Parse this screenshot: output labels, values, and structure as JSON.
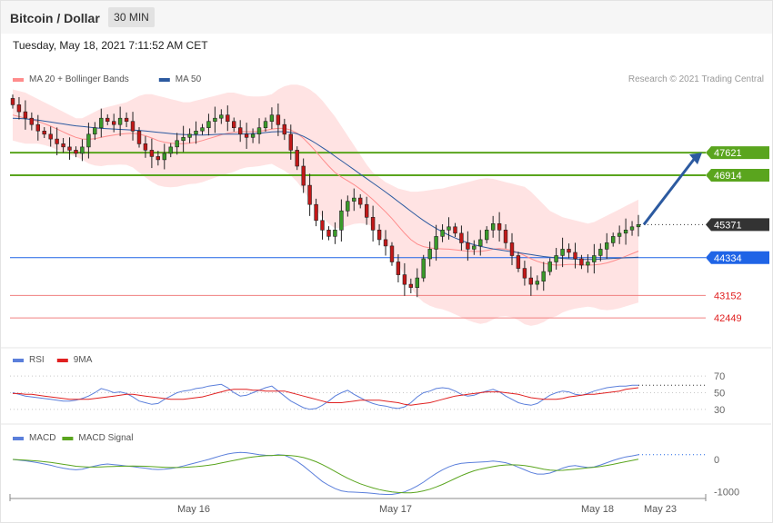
{
  "header": {
    "title": "Bitcoin / Dollar",
    "timeframe": "30 MIN",
    "datetime": "Tuesday, May 18, 2021 7:11:52 AM CET"
  },
  "colors": {
    "bollinger": "#ff8c8c",
    "bollinger_fill": "#ffe3e3",
    "ma50": "#2c5aa0",
    "resistance": "#5aa51e",
    "support": "#f08080",
    "pivot": "#1f64e6",
    "current": "#333333",
    "rsi": "#5b7fdb",
    "rsi_ma": "#e02020",
    "macd": "#5b7fdb",
    "macd_signal": "#5aa51e",
    "arrow": "#2c5aa0"
  },
  "chart_data": [
    {
      "type": "candlestick",
      "title": "Bitcoin / Dollar",
      "legend": [
        {
          "name": "MA 20 + Bollinger Bands",
          "color": "#ff8c8c"
        },
        {
          "name": "MA 50",
          "color": "#2c5aa0"
        }
      ],
      "credit": "Research © 2021 Trading Central",
      "x_labels": [
        "May 16",
        "May 17",
        "May 18",
        "May 23"
      ],
      "ylim": [
        41600,
        49700
      ],
      "levels": [
        {
          "value": 47621,
          "label": "47621",
          "kind": "resistance"
        },
        {
          "value": 46914,
          "label": "46914",
          "kind": "resistance"
        },
        {
          "value": 45371,
          "label": "45371",
          "kind": "current"
        },
        {
          "value": 44334,
          "label": "44334",
          "kind": "pivot"
        },
        {
          "value": 43152,
          "label": "43152",
          "kind": "support"
        },
        {
          "value": 42449,
          "label": "42449",
          "kind": "support"
        }
      ],
      "forecast_arrow": {
        "from": 45371,
        "to": 47621
      },
      "close": [
        49120,
        48900,
        48700,
        48500,
        48300,
        48200,
        48050,
        47900,
        47800,
        47700,
        47600,
        47800,
        48200,
        48400,
        48700,
        48600,
        48500,
        48700,
        48600,
        48300,
        47900,
        47700,
        47500,
        47400,
        47600,
        47800,
        48000,
        48100,
        48200,
        48300,
        48400,
        48600,
        48700,
        48800,
        48600,
        48400,
        48200,
        48100,
        48200,
        48400,
        48600,
        48800,
        48500,
        48200,
        47700,
        47200,
        46600,
        46000,
        45500,
        45200,
        45000,
        45200,
        45800,
        46100,
        46200,
        46000,
        45600,
        45200,
        44900,
        44700,
        44200,
        43800,
        43500,
        43400,
        43700,
        44300,
        44600,
        45000,
        45200,
        45300,
        45100,
        44800,
        44600,
        44700,
        44900,
        45200,
        45400,
        45200,
        44800,
        44400,
        44000,
        43700,
        43500,
        43600,
        43900,
        44200,
        44400,
        44600,
        44500,
        44300,
        44100,
        44200,
        44400,
        44600,
        44800,
        45000,
        45100,
        45200,
        45300,
        45371
      ],
      "ma20": [
        48800,
        48750,
        48700,
        48650,
        48600,
        48530,
        48450,
        48360,
        48270,
        48180,
        48100,
        48050,
        48040,
        48060,
        48100,
        48140,
        48170,
        48200,
        48220,
        48230,
        48200,
        48150,
        48080,
        48000,
        47950,
        47920,
        47900,
        47900,
        47920,
        47950,
        48000,
        48060,
        48120,
        48180,
        48230,
        48260,
        48280,
        48280,
        48280,
        48290,
        48320,
        48360,
        48380,
        48380,
        48330,
        48230,
        48070,
        47870,
        47650,
        47420,
        47200,
        47000,
        46860,
        46740,
        46620,
        46480,
        46320,
        46150,
        45960,
        45770,
        45560,
        45330,
        45100,
        44900,
        44760,
        44680,
        44640,
        44620,
        44610,
        44600,
        44580,
        44560,
        44540,
        44530,
        44530,
        44560,
        44600,
        44620,
        44600,
        44560,
        44490,
        44400,
        44300,
        44220,
        44160,
        44120,
        44100,
        44110,
        44120,
        44120,
        44110,
        44100,
        44110,
        44130,
        44170,
        44230,
        44300,
        44380,
        44460,
        44540
      ],
      "bb_upper": [
        49600,
        49550,
        49500,
        49400,
        49300,
        49200,
        49100,
        49000,
        48900,
        48800,
        48700,
        48700,
        48800,
        48900,
        49000,
        49050,
        49100,
        49150,
        49200,
        49300,
        49400,
        49450,
        49450,
        49400,
        49350,
        49300,
        49250,
        49200,
        49200,
        49250,
        49300,
        49350,
        49400,
        49450,
        49500,
        49500,
        49450,
        49400,
        49380,
        49380,
        49400,
        49450,
        49600,
        49700,
        49750,
        49750,
        49700,
        49600,
        49450,
        49250,
        49000,
        48750,
        48450,
        48150,
        47850,
        47550,
        47250,
        47000,
        46850,
        46700,
        46600,
        46500,
        46450,
        46400,
        46400,
        46420,
        46450,
        46480,
        46500,
        46550,
        46600,
        46650,
        46700,
        46750,
        46800,
        46820,
        46800,
        46750,
        46700,
        46650,
        46600,
        46550,
        46400,
        46200,
        46000,
        45800,
        45700,
        45600,
        45550,
        45500,
        45450,
        45400,
        45450,
        45550,
        45650,
        45750,
        45850,
        45950,
        46050,
        46150
      ],
      "bb_lower": [
        48000,
        47950,
        47900,
        47900,
        47900,
        47860,
        47800,
        47720,
        47640,
        47560,
        47500,
        47400,
        47280,
        47220,
        47200,
        47230,
        47240,
        47250,
        47240,
        47160,
        47000,
        46850,
        46710,
        46600,
        46550,
        46540,
        46550,
        46600,
        46640,
        46650,
        46700,
        46770,
        46840,
        46910,
        46960,
        47020,
        47110,
        47160,
        47180,
        47200,
        47240,
        47270,
        47160,
        47060,
        46910,
        46710,
        46440,
        46140,
        45850,
        45590,
        45400,
        45250,
        45270,
        45330,
        45390,
        45410,
        45390,
        45300,
        45070,
        44840,
        44520,
        44160,
        43750,
        43400,
        43120,
        42940,
        42830,
        42760,
        42720,
        42650,
        42560,
        42470,
        42380,
        42310,
        42260,
        42300,
        42400,
        42490,
        42500,
        42470,
        42380,
        42250,
        42200,
        42240,
        42320,
        42440,
        42500,
        42620,
        42690,
        42740,
        42770,
        42800,
        42770,
        42710,
        42690,
        42710,
        42750,
        42810,
        42870,
        42930
      ],
      "ma50": [
        48700,
        48690,
        48680,
        48660,
        48640,
        48610,
        48580,
        48550,
        48520,
        48490,
        48460,
        48440,
        48420,
        48400,
        48380,
        48370,
        48360,
        48350,
        48340,
        48330,
        48320,
        48300,
        48280,
        48260,
        48240,
        48220,
        48200,
        48190,
        48180,
        48170,
        48170,
        48180,
        48190,
        48200,
        48200,
        48200,
        48200,
        48210,
        48220,
        48230,
        48250,
        48270,
        48280,
        48280,
        48260,
        48210,
        48130,
        48030,
        47910,
        47780,
        47650,
        47510,
        47370,
        47230,
        47090,
        46950,
        46810,
        46670,
        46530,
        46390,
        46240,
        46090,
        45940,
        45790,
        45640,
        45500,
        45370,
        45250,
        45140,
        45040,
        44950,
        44870,
        44800,
        44740,
        44690,
        44650,
        44610,
        44580,
        44550,
        44520,
        44490,
        44460,
        44430,
        44400,
        44370,
        44350,
        44330,
        44310,
        44300,
        44290,
        44280,
        44280,
        44280,
        44290,
        44300,
        44310,
        44320,
        44330,
        44340,
        44350
      ]
    },
    {
      "type": "line",
      "legend": [
        {
          "name": "RSI",
          "color": "#5b7fdb"
        },
        {
          "name": "9MA",
          "color": "#e02020"
        }
      ],
      "yticks": [
        {
          "value": 70,
          "label": "70"
        },
        {
          "value": 50,
          "label": "50"
        },
        {
          "value": 30,
          "label": "30"
        }
      ],
      "ylim": [
        20,
        80
      ],
      "rsi": [
        50,
        48,
        46,
        45,
        44,
        43,
        42,
        41,
        40,
        40,
        41,
        43,
        46,
        50,
        55,
        53,
        50,
        51,
        49,
        45,
        40,
        38,
        36,
        37,
        42,
        46,
        50,
        52,
        53,
        55,
        56,
        58,
        59,
        60,
        56,
        50,
        46,
        47,
        50,
        53,
        56,
        58,
        52,
        46,
        40,
        36,
        32,
        30,
        31,
        35,
        40,
        46,
        50,
        53,
        48,
        44,
        40,
        37,
        35,
        34,
        32,
        31,
        33,
        38,
        45,
        50,
        52,
        55,
        56,
        55,
        52,
        48,
        46,
        47,
        50,
        52,
        54,
        51,
        46,
        42,
        38,
        36,
        35,
        37,
        42,
        47,
        50,
        52,
        51,
        48,
        47,
        49,
        52,
        54,
        56,
        57,
        58,
        58,
        59,
        59
      ],
      "rsi_ma": [
        49,
        49,
        48,
        48,
        47,
        46,
        45,
        44,
        43,
        42,
        42,
        42,
        42,
        43,
        44,
        45,
        46,
        47,
        48,
        48,
        47,
        46,
        45,
        44,
        43,
        42,
        42,
        42,
        43,
        44,
        45,
        47,
        49,
        51,
        53,
        54,
        54,
        54,
        53,
        53,
        52,
        52,
        52,
        52,
        50,
        48,
        46,
        44,
        42,
        40,
        38,
        38,
        38,
        39,
        40,
        41,
        41,
        41,
        41,
        40,
        39,
        38,
        36,
        35,
        36,
        37,
        38,
        40,
        42,
        44,
        46,
        47,
        48,
        49,
        50,
        51,
        51,
        51,
        50,
        49,
        48,
        46,
        44,
        43,
        42,
        42,
        42,
        43,
        45,
        46,
        47,
        48,
        48,
        49,
        50,
        51,
        52,
        54,
        55,
        56
      ]
    },
    {
      "type": "line",
      "legend": [
        {
          "name": "MACD",
          "color": "#5b7fdb"
        },
        {
          "name": "MACD Signal",
          "color": "#5aa51e"
        }
      ],
      "yticks": [
        {
          "value": 0,
          "label": "0"
        },
        {
          "value": -1000,
          "label": "-1000"
        }
      ],
      "ylim": [
        -1150,
        450
      ],
      "macd": [
        0,
        -20,
        -40,
        -70,
        -100,
        -140,
        -180,
        -230,
        -270,
        -300,
        -320,
        -300,
        -250,
        -200,
        -160,
        -140,
        -160,
        -180,
        -200,
        -220,
        -250,
        -270,
        -300,
        -310,
        -300,
        -280,
        -250,
        -200,
        -150,
        -100,
        -50,
        0,
        60,
        120,
        170,
        200,
        220,
        210,
        180,
        150,
        130,
        120,
        150,
        130,
        50,
        -60,
        -200,
        -360,
        -520,
        -680,
        -800,
        -900,
        -970,
        -1000,
        -1010,
        -1020,
        -1030,
        -1050,
        -1070,
        -1080,
        -1080,
        -1050,
        -1000,
        -920,
        -820,
        -700,
        -560,
        -430,
        -320,
        -230,
        -160,
        -120,
        -100,
        -90,
        -80,
        -70,
        -50,
        -70,
        -100,
        -160,
        -240,
        -320,
        -400,
        -450,
        -450,
        -420,
        -350,
        -270,
        -210,
        -190,
        -220,
        -250,
        -230,
        -170,
        -100,
        -30,
        30,
        80,
        110,
        150
      ],
      "macd_signal": [
        0,
        -10,
        -20,
        -35,
        -50,
        -70,
        -90,
        -120,
        -150,
        -180,
        -210,
        -225,
        -235,
        -235,
        -230,
        -222,
        -215,
        -210,
        -207,
        -205,
        -207,
        -210,
        -220,
        -230,
        -240,
        -248,
        -250,
        -245,
        -235,
        -220,
        -200,
        -180,
        -150,
        -110,
        -70,
        -30,
        10,
        50,
        80,
        100,
        115,
        125,
        130,
        130,
        120,
        100,
        60,
        0,
        -70,
        -160,
        -260,
        -370,
        -480,
        -580,
        -670,
        -750,
        -820,
        -880,
        -930,
        -970,
        -1000,
        -1020,
        -1030,
        -1030,
        -1010,
        -970,
        -920,
        -850,
        -770,
        -680,
        -590,
        -500,
        -420,
        -350,
        -300,
        -260,
        -220,
        -190,
        -170,
        -165,
        -170,
        -190,
        -220,
        -260,
        -300,
        -330,
        -340,
        -335,
        -320,
        -300,
        -280,
        -260,
        -240,
        -215,
        -185,
        -150,
        -110,
        -70,
        -30,
        10
      ]
    }
  ]
}
